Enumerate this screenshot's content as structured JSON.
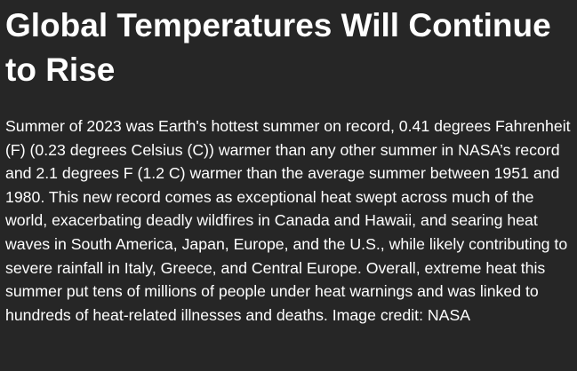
{
  "article": {
    "headline": "Global Temperatures Will Continue to Rise",
    "body": "Summer of 2023 was Earth's hottest summer on record, 0.41 degrees Fahrenheit (F) (0.23 degrees Celsius (C)) warmer than any other summer in NASA’s record and 2.1 degrees F (1.2 C) warmer than the average summer between 1951 and 1980. This new record comes as exceptional heat swept across much of the world, exacerbating deadly wildfires in Canada and Hawaii, and searing heat waves in South America, Japan, Europe, and the U.S., while likely contributing to severe rainfall in Italy, Greece, and Central Europe. Overall, extreme heat this summer put tens of millions of people under heat warnings and was linked to hundreds of heat-related illnesses and deaths. Image credit: NASA"
  },
  "colors": {
    "background": "#262626",
    "text": "#ffffff"
  }
}
